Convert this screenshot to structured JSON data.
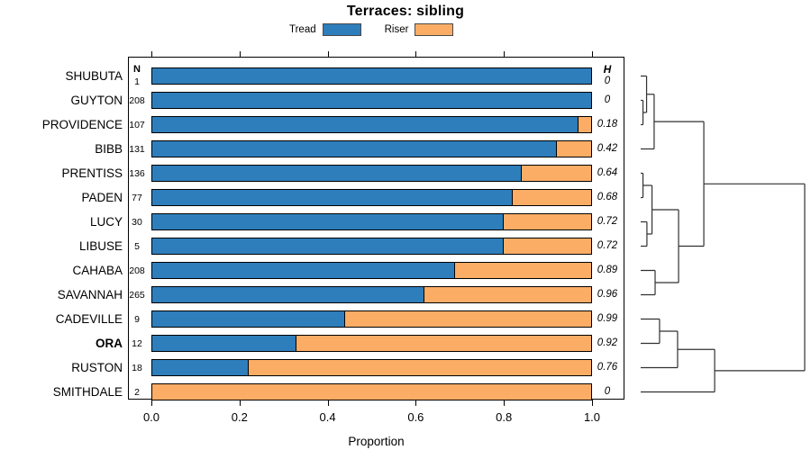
{
  "title": "Terraces: sibling",
  "axis": {
    "label": "Proportion",
    "ticks": [
      "0.0",
      "0.2",
      "0.4",
      "0.6",
      "0.8",
      "1.0"
    ]
  },
  "columns": {
    "n_header": "N",
    "h_header": "H"
  },
  "chart_data": {
    "type": "bar",
    "stacked": true,
    "orientation": "horizontal",
    "title": "Terraces: sibling",
    "xlabel": "Proportion",
    "xlim": [
      0,
      1
    ],
    "categories": [
      "SHUBUTA",
      "GUYTON",
      "PROVIDENCE",
      "BIBB",
      "PRENTISS",
      "PADEN",
      "LUCY",
      "LIBUSE",
      "CAHABA",
      "SAVANNAH",
      "CADEVILLE",
      "ORA",
      "RUSTON",
      "SMITHDALE"
    ],
    "bold_category": "ORA",
    "n_values": [
      1,
      208,
      107,
      131,
      136,
      77,
      30,
      5,
      208,
      265,
      9,
      12,
      18,
      2
    ],
    "h_values": [
      "0",
      "0",
      "0.18",
      "0.42",
      "0.64",
      "0.68",
      "0.72",
      "0.72",
      "0.89",
      "0.96",
      "0.99",
      "0.92",
      "0.76",
      "0"
    ],
    "series": [
      {
        "name": "Tread",
        "color": "#2E7EBC",
        "values": [
          1.0,
          1.0,
          0.97,
          0.92,
          0.84,
          0.82,
          0.8,
          0.8,
          0.69,
          0.62,
          0.44,
          0.33,
          0.22,
          0.0
        ]
      },
      {
        "name": "Riser",
        "color": "#FBAD66",
        "values": [
          0.0,
          0.0,
          0.03,
          0.08,
          0.16,
          0.18,
          0.2,
          0.2,
          0.31,
          0.38,
          0.56,
          0.67,
          0.78,
          1.0
        ]
      }
    ],
    "legend_position": "top",
    "grid": false,
    "dendrogram_tree": [
      [
        [
          [
            "SHUBUTA",
            [
              "GUYTON",
              "PROVIDENCE",
              0.014
            ],
            0.036
          ],
          "BIBB",
          0.082
        ],
        [
          [
            [
              "PRENTISS",
              "PADEN",
              0.014
            ],
            [
              "LUCY",
              "LIBUSE",
              0.038
            ],
            0.069
          ],
          [
            "CAHABA",
            "SAVANNAH",
            0.088
          ],
          0.231
        ],
        0.385
      ],
      [
        [
          [
            "CADEVILLE",
            "ORA",
            0.115
          ],
          "RUSTON",
          0.225
        ],
        "SMITHDALE",
        0.451
      ],
      1.0
    ]
  }
}
